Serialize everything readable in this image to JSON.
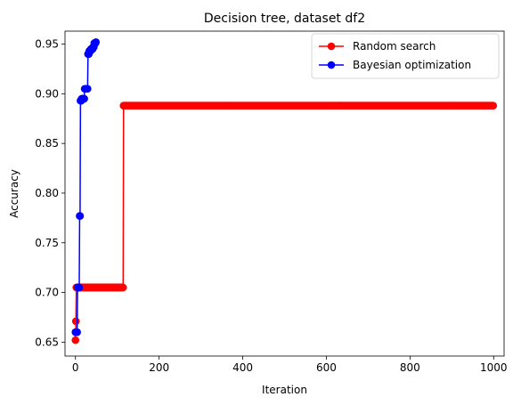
{
  "chart_data": {
    "type": "line",
    "title": "Decision tree, dataset df2",
    "xlabel": "Iteration",
    "ylabel": "Accuracy",
    "xlim": [
      -25,
      1025
    ],
    "ylim": [
      0.636,
      0.963
    ],
    "xticks": [
      0,
      200,
      400,
      600,
      800,
      1000
    ],
    "yticks": [
      0.65,
      0.7,
      0.75,
      0.8,
      0.85,
      0.9,
      0.95
    ],
    "xtick_labels": [
      "0",
      "200",
      "400",
      "600",
      "800",
      "1000"
    ],
    "ytick_labels": [
      "0.65",
      "0.70",
      "0.75",
      "0.80",
      "0.85",
      "0.90",
      "0.95"
    ],
    "grid": false,
    "legend_position": "top-right",
    "series": [
      {
        "name": "Random search",
        "color": "#ff0000",
        "marker": "circle",
        "segments": [
          {
            "x_start": 0,
            "x_end": 0,
            "y": 0.652
          },
          {
            "x_start": 1,
            "x_end": 1,
            "y": 0.671
          },
          {
            "x_start": 2,
            "x_end": 114,
            "y": 0.705
          },
          {
            "x_start": 115,
            "x_end": 999,
            "y": 0.888
          }
        ]
      },
      {
        "name": "Bayesian optimization",
        "color": "#0000ff",
        "marker": "circle",
        "points": [
          [
            0,
            0.66
          ],
          [
            1,
            0.66
          ],
          [
            2,
            0.66
          ],
          [
            3,
            0.66
          ],
          [
            4,
            0.66
          ],
          [
            5,
            0.705
          ],
          [
            6,
            0.705
          ],
          [
            7,
            0.705
          ],
          [
            8,
            0.705
          ],
          [
            9,
            0.705
          ],
          [
            10,
            0.777
          ],
          [
            11,
            0.777
          ],
          [
            12,
            0.893
          ],
          [
            13,
            0.893
          ],
          [
            14,
            0.893
          ],
          [
            15,
            0.895
          ],
          [
            16,
            0.895
          ],
          [
            17,
            0.895
          ],
          [
            18,
            0.895
          ],
          [
            19,
            0.895
          ],
          [
            20,
            0.895
          ],
          [
            21,
            0.895
          ],
          [
            22,
            0.905
          ],
          [
            23,
            0.905
          ],
          [
            24,
            0.905
          ],
          [
            25,
            0.905
          ],
          [
            26,
            0.905
          ],
          [
            27,
            0.905
          ],
          [
            28,
            0.905
          ],
          [
            29,
            0.905
          ],
          [
            30,
            0.94
          ],
          [
            31,
            0.94
          ],
          [
            32,
            0.94
          ],
          [
            33,
            0.943
          ],
          [
            34,
            0.943
          ],
          [
            35,
            0.943
          ],
          [
            36,
            0.943
          ],
          [
            37,
            0.945
          ],
          [
            38,
            0.945
          ],
          [
            39,
            0.945
          ],
          [
            40,
            0.945
          ],
          [
            41,
            0.945
          ],
          [
            42,
            0.947
          ],
          [
            43,
            0.947
          ],
          [
            44,
            0.947
          ],
          [
            45,
            0.951
          ],
          [
            46,
            0.951
          ],
          [
            47,
            0.951
          ],
          [
            48,
            0.951
          ],
          [
            49,
            0.952
          ]
        ]
      }
    ]
  }
}
